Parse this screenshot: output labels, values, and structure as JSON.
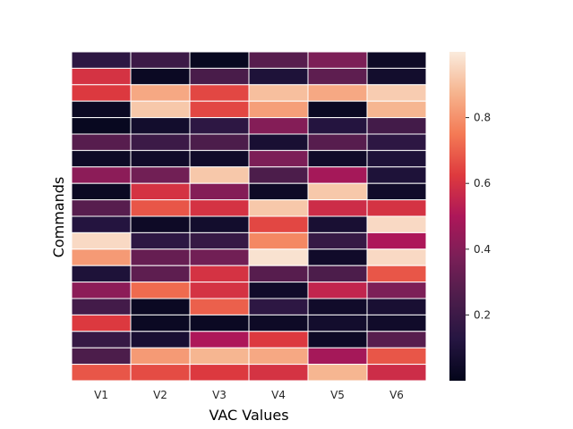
{
  "chart_data": {
    "type": "heatmap",
    "xlabel": "VAC Values",
    "ylabel": "Commands",
    "x_categories": [
      "V1",
      "V2",
      "V3",
      "V4",
      "V5",
      "V6"
    ],
    "row_count": 20,
    "values": [
      [
        0.15,
        0.2,
        0.02,
        0.28,
        0.38,
        0.04
      ],
      [
        0.6,
        0.03,
        0.24,
        0.1,
        0.3,
        0.06
      ],
      [
        0.62,
        0.85,
        0.65,
        0.9,
        0.85,
        0.93
      ],
      [
        0.03,
        0.92,
        0.65,
        0.83,
        0.03,
        0.88
      ],
      [
        0.02,
        0.06,
        0.15,
        0.4,
        0.12,
        0.22
      ],
      [
        0.28,
        0.2,
        0.25,
        0.08,
        0.28,
        0.15
      ],
      [
        0.04,
        0.05,
        0.05,
        0.38,
        0.05,
        0.1
      ],
      [
        0.42,
        0.35,
        0.92,
        0.25,
        0.48,
        0.1
      ],
      [
        0.03,
        0.6,
        0.4,
        0.04,
        0.92,
        0.05
      ],
      [
        0.28,
        0.68,
        0.6,
        0.92,
        0.58,
        0.6
      ],
      [
        0.12,
        0.04,
        0.06,
        0.65,
        0.08,
        0.96
      ],
      [
        0.96,
        0.15,
        0.18,
        0.78,
        0.18,
        0.5
      ],
      [
        0.82,
        0.32,
        0.35,
        0.98,
        0.05,
        0.96
      ],
      [
        0.1,
        0.3,
        0.6,
        0.28,
        0.25,
        0.68
      ],
      [
        0.42,
        0.72,
        0.6,
        0.05,
        0.55,
        0.38
      ],
      [
        0.22,
        0.03,
        0.7,
        0.15,
        0.05,
        0.08
      ],
      [
        0.62,
        0.03,
        0.03,
        0.04,
        0.06,
        0.05
      ],
      [
        0.18,
        0.08,
        0.5,
        0.62,
        0.04,
        0.28
      ],
      [
        0.25,
        0.82,
        0.88,
        0.85,
        0.48,
        0.68
      ],
      [
        0.68,
        0.66,
        0.62,
        0.6,
        0.88,
        0.58
      ]
    ],
    "colorbar": {
      "ticks": [
        0.2,
        0.4,
        0.6,
        0.8
      ],
      "tick_labels": [
        "0.2",
        "0.4",
        "0.6",
        "0.8"
      ],
      "vmin": 0.0,
      "vmax": 1.0
    },
    "colormap": "rocket",
    "cell_border_color": "#ffffff",
    "grid": false,
    "legend": "colorbar-right"
  }
}
